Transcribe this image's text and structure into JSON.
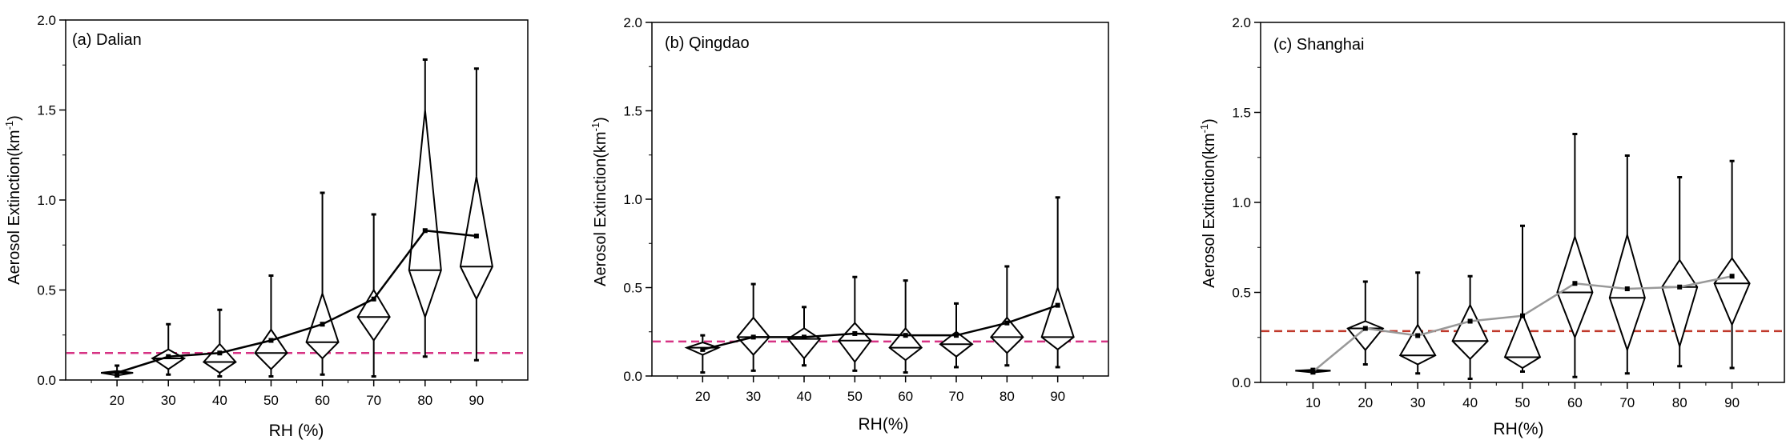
{
  "chart_data": [
    {
      "type": "box",
      "panel_label": "(a) Dalian",
      "xlabel": "RH (%)",
      "ylabel": "Aerosol Extinction(km-1)",
      "ylabel_main": "Aerosol Extinction(km",
      "ylabel_sup": "-1",
      "ylabel_close": ")",
      "xlim": [
        10,
        100
      ],
      "ylim": [
        0,
        2.0
      ],
      "xticks": [
        20,
        30,
        40,
        50,
        60,
        70,
        80,
        90
      ],
      "yticks": [
        "0.0",
        "0.5",
        "1.0",
        "1.5",
        "2.0"
      ],
      "reference_line": 0.15,
      "reference_color": "#d63384",
      "mean_line_color": "#000000",
      "boxes": [
        {
          "x": 20,
          "min": 0.02,
          "q1": 0.025,
          "median": 0.04,
          "q3": 0.05,
          "max": 0.08,
          "mean": 0.04
        },
        {
          "x": 30,
          "min": 0.03,
          "q1": 0.06,
          "median": 0.12,
          "q3": 0.17,
          "max": 0.31,
          "mean": 0.13
        },
        {
          "x": 40,
          "min": 0.02,
          "q1": 0.04,
          "median": 0.1,
          "q3": 0.2,
          "max": 0.39,
          "mean": 0.15
        },
        {
          "x": 50,
          "min": 0.02,
          "q1": 0.06,
          "median": 0.15,
          "q3": 0.28,
          "max": 0.58,
          "mean": 0.22
        },
        {
          "x": 60,
          "min": 0.03,
          "q1": 0.12,
          "median": 0.21,
          "q3": 0.48,
          "max": 1.04,
          "mean": 0.31
        },
        {
          "x": 70,
          "min": 0.02,
          "q1": 0.22,
          "median": 0.35,
          "q3": 0.5,
          "max": 0.92,
          "mean": 0.45
        },
        {
          "x": 80,
          "min": 0.13,
          "q1": 0.35,
          "median": 0.61,
          "q3": 1.5,
          "max": 1.78,
          "mean": 0.83
        },
        {
          "x": 90,
          "min": 0.11,
          "q1": 0.45,
          "median": 0.63,
          "q3": 1.13,
          "max": 1.73,
          "mean": 0.8
        }
      ]
    },
    {
      "type": "box",
      "panel_label": "(b) Qingdao",
      "xlabel": "RH(%)",
      "ylabel": "Aerosol Extinction(km-1)",
      "ylabel_main": "Aerosol Extinction(km",
      "ylabel_sup": "-1",
      "ylabel_close": ")",
      "xlim": [
        10,
        100
      ],
      "ylim": [
        0,
        2.0
      ],
      "xticks": [
        20,
        30,
        40,
        50,
        60,
        70,
        80,
        90
      ],
      "yticks": [
        "0.0",
        "0.5",
        "1.0",
        "1.5",
        "2.0"
      ],
      "reference_line": 0.195,
      "reference_color": "#d63384",
      "mean_line_color": "#000000",
      "boxes": [
        {
          "x": 20,
          "min": 0.02,
          "q1": 0.12,
          "median": 0.16,
          "q3": 0.19,
          "max": 0.23,
          "mean": 0.15
        },
        {
          "x": 30,
          "min": 0.03,
          "q1": 0.12,
          "median": 0.22,
          "q3": 0.33,
          "max": 0.52,
          "mean": 0.22
        },
        {
          "x": 40,
          "min": 0.06,
          "q1": 0.1,
          "median": 0.21,
          "q3": 0.27,
          "max": 0.39,
          "mean": 0.22
        },
        {
          "x": 50,
          "min": 0.03,
          "q1": 0.08,
          "median": 0.2,
          "q3": 0.3,
          "max": 0.56,
          "mean": 0.24
        },
        {
          "x": 60,
          "min": 0.02,
          "q1": 0.09,
          "median": 0.16,
          "q3": 0.27,
          "max": 0.54,
          "mean": 0.23
        },
        {
          "x": 70,
          "min": 0.05,
          "q1": 0.11,
          "median": 0.18,
          "q3": 0.25,
          "max": 0.41,
          "mean": 0.23
        },
        {
          "x": 80,
          "min": 0.06,
          "q1": 0.13,
          "median": 0.22,
          "q3": 0.33,
          "max": 0.62,
          "mean": 0.3
        },
        {
          "x": 90,
          "min": 0.05,
          "q1": 0.15,
          "median": 0.22,
          "q3": 0.5,
          "max": 1.01,
          "mean": 0.4
        }
      ]
    },
    {
      "type": "box",
      "panel_label": "(c) Shanghai",
      "xlabel": "RH(%)",
      "ylabel": "Aerosol Extinction(km-1)",
      "ylabel_main": "Aerosol Extinction(km",
      "ylabel_sup": "-1",
      "ylabel_close": ")",
      "xlim": [
        0,
        100
      ],
      "ylim": [
        0,
        2.0
      ],
      "xticks": [
        10,
        20,
        30,
        40,
        50,
        60,
        70,
        80,
        90
      ],
      "yticks": [
        "0.0",
        "0.5",
        "1.0",
        "1.5",
        "2.0"
      ],
      "reference_line": 0.285,
      "reference_color": "#c0392b",
      "mean_line_color": "#999999",
      "boxes": [
        {
          "x": 10,
          "min": 0.05,
          "q1": 0.055,
          "median": 0.065,
          "q3": 0.07,
          "max": 0.075,
          "mean": 0.06
        },
        {
          "x": 20,
          "min": 0.1,
          "q1": 0.18,
          "median": 0.3,
          "q3": 0.34,
          "max": 0.56,
          "mean": 0.3
        },
        {
          "x": 30,
          "min": 0.05,
          "q1": 0.1,
          "median": 0.15,
          "q3": 0.32,
          "max": 0.61,
          "mean": 0.26
        },
        {
          "x": 40,
          "min": 0.02,
          "q1": 0.13,
          "median": 0.23,
          "q3": 0.43,
          "max": 0.59,
          "mean": 0.34
        },
        {
          "x": 50,
          "min": 0.06,
          "q1": 0.08,
          "median": 0.14,
          "q3": 0.38,
          "max": 0.87,
          "mean": 0.37
        },
        {
          "x": 60,
          "min": 0.03,
          "q1": 0.25,
          "median": 0.5,
          "q3": 0.81,
          "max": 1.38,
          "mean": 0.55
        },
        {
          "x": 70,
          "min": 0.05,
          "q1": 0.18,
          "median": 0.47,
          "q3": 0.82,
          "max": 1.26,
          "mean": 0.52
        },
        {
          "x": 80,
          "min": 0.09,
          "q1": 0.2,
          "median": 0.53,
          "q3": 0.68,
          "max": 1.14,
          "mean": 0.53
        },
        {
          "x": 90,
          "min": 0.08,
          "q1": 0.32,
          "median": 0.55,
          "q3": 0.69,
          "max": 1.23,
          "mean": 0.59
        }
      ]
    }
  ]
}
